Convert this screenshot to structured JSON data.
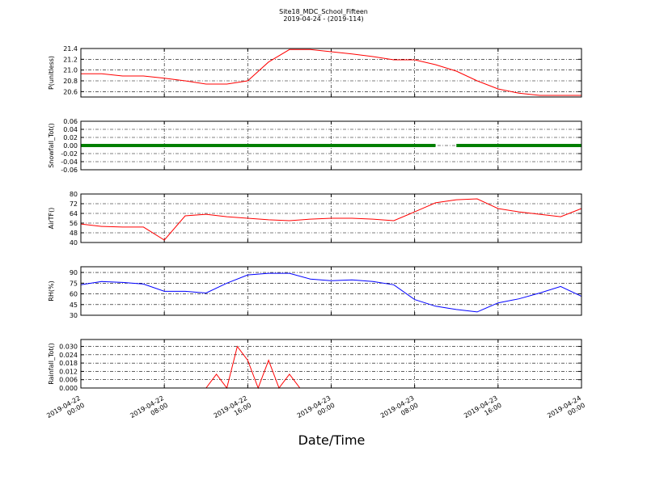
{
  "title": "Site18_MDC_School_Fifteen",
  "subtitle": "2019-04-24 - (2019-114)",
  "xlabel": "Date/Time",
  "xlim": [
    "2019-04-22 00:00",
    "2019-04-24 00:00"
  ],
  "xticks": [
    "2019-04-22 00:00",
    "2019-04-22 08:00",
    "2019-04-22 16:00",
    "2019-04-23 00:00",
    "2019-04-23 08:00",
    "2019-04-23 16:00",
    "2019-04-24 00:00"
  ],
  "grid": true,
  "chart_data": [
    {
      "type": "line",
      "ylabel": "P(unitless)",
      "color": "#ff0000",
      "ylim": [
        20.5,
        21.4
      ],
      "yticks": [
        20.6,
        20.8,
        {
          "value": 21,
          "label": "21.0"
        },
        21.2,
        21.4
      ],
      "x": [
        "2019-04-22 00:00",
        "2019-04-22 02:00",
        "2019-04-22 04:00",
        "2019-04-22 06:00",
        "2019-04-22 08:00",
        "2019-04-22 10:00",
        "2019-04-22 12:00",
        "2019-04-22 14:00",
        "2019-04-22 16:00",
        "2019-04-22 18:00",
        "2019-04-22 20:00",
        "2019-04-22 22:00",
        "2019-04-23 00:00",
        "2019-04-23 02:00",
        "2019-04-23 04:00",
        "2019-04-23 06:00",
        "2019-04-23 08:00",
        "2019-04-23 10:00",
        "2019-04-23 12:00",
        "2019-04-23 14:00",
        "2019-04-23 16:00",
        "2019-04-23 18:00",
        "2019-04-23 20:00",
        "2019-04-23 22:00",
        "2019-04-24 00:00"
      ],
      "values": [
        20.93,
        20.93,
        20.89,
        20.89,
        20.85,
        20.8,
        20.74,
        20.74,
        20.8,
        21.15,
        21.38,
        21.38,
        21.34,
        21.3,
        21.25,
        21.19,
        21.19,
        21.1,
        20.98,
        20.8,
        20.65,
        20.57,
        20.53,
        20.53,
        20.53
      ]
    },
    {
      "type": "line",
      "ylabel": "Snowfall_Tot()",
      "color": "#007f00",
      "ylim": [
        -0.06,
        0.06
      ],
      "yticks": [
        -0.06,
        -0.04,
        -0.02,
        {
          "value": 0,
          "label": "0.00"
        },
        0.02,
        0.04,
        0.06
      ],
      "x": [
        "2019-04-22 00:00",
        "2019-04-22 01:00",
        "2019-04-22 02:00",
        "2019-04-22 03:00",
        "2019-04-22 04:00",
        "2019-04-22 05:00",
        "2019-04-22 06:00",
        "2019-04-22 07:00",
        "2019-04-22 08:00",
        "2019-04-22 09:00",
        "2019-04-22 10:00",
        "2019-04-22 11:00",
        "2019-04-22 12:00",
        "2019-04-22 13:00",
        "2019-04-22 14:00",
        "2019-04-22 15:00",
        "2019-04-22 16:00",
        "2019-04-22 17:00",
        "2019-04-22 18:00",
        "2019-04-22 19:00",
        "2019-04-22 20:00",
        "2019-04-22 21:00",
        "2019-04-22 22:00",
        "2019-04-22 23:00",
        "2019-04-23 00:00",
        "2019-04-23 01:00",
        "2019-04-23 02:00",
        "2019-04-23 03:00",
        "2019-04-23 04:00",
        "2019-04-23 05:00",
        "2019-04-23 06:00",
        "2019-04-23 07:00",
        "2019-04-23 08:00",
        "2019-04-23 09:00",
        "2019-04-23 10:00",
        "2019-04-23 11:00",
        "2019-04-23 12:00",
        "2019-04-23 13:00",
        "2019-04-23 14:00",
        "2019-04-23 15:00",
        "2019-04-23 16:00",
        "2019-04-23 17:00",
        "2019-04-23 18:00",
        "2019-04-23 19:00",
        "2019-04-23 20:00",
        "2019-04-23 21:00",
        "2019-04-23 22:00",
        "2019-04-23 23:00",
        "2019-04-24 00:00"
      ],
      "values": [
        0,
        0,
        0,
        0,
        0,
        0,
        0,
        0,
        0,
        0,
        0,
        0,
        0,
        0,
        0,
        0,
        0,
        0,
        0,
        0,
        0,
        0,
        0,
        0,
        0,
        0,
        0,
        0,
        0,
        0,
        0,
        0,
        0,
        0,
        0,
        null,
        0,
        0,
        0,
        0,
        0,
        0,
        0,
        0,
        0,
        0,
        0,
        0,
        0
      ]
    },
    {
      "type": "line",
      "ylabel": "AirTF()",
      "color": "#ff0000",
      "ylim": [
        40,
        80
      ],
      "yticks": [
        40,
        48,
        56,
        64,
        72,
        80
      ],
      "x": [
        "2019-04-22 00:00",
        "2019-04-22 02:00",
        "2019-04-22 04:00",
        "2019-04-22 06:00",
        "2019-04-22 08:00",
        "2019-04-22 10:00",
        "2019-04-22 12:00",
        "2019-04-22 14:00",
        "2019-04-22 16:00",
        "2019-04-22 18:00",
        "2019-04-22 20:00",
        "2019-04-22 22:00",
        "2019-04-23 00:00",
        "2019-04-23 02:00",
        "2019-04-23 04:00",
        "2019-04-23 06:00",
        "2019-04-23 08:00",
        "2019-04-23 10:00",
        "2019-04-23 12:00",
        "2019-04-23 14:00",
        "2019-04-23 16:00",
        "2019-04-23 18:00",
        "2019-04-23 20:00",
        "2019-04-23 22:00",
        "2019-04-24 00:00"
      ],
      "values": [
        55.3,
        53.3,
        52.7,
        52.7,
        42,
        62,
        63.3,
        61.3,
        60,
        58.7,
        58,
        59.3,
        60,
        60,
        59.3,
        58,
        65.3,
        72.7,
        75.3,
        76,
        68,
        65.3,
        63.3,
        61.3,
        68
      ]
    },
    {
      "type": "line",
      "ylabel": "RH(%)",
      "color": "#0000ff",
      "ylim": [
        30,
        98
      ],
      "yticks": [
        30,
        45,
        60,
        75,
        90
      ],
      "x": [
        "2019-04-22 00:00",
        "2019-04-22 02:00",
        "2019-04-22 04:00",
        "2019-04-22 06:00",
        "2019-04-22 08:00",
        "2019-04-22 10:00",
        "2019-04-22 12:00",
        "2019-04-22 14:00",
        "2019-04-22 16:00",
        "2019-04-22 18:00",
        "2019-04-22 20:00",
        "2019-04-22 22:00",
        "2019-04-23 00:00",
        "2019-04-23 02:00",
        "2019-04-23 04:00",
        "2019-04-23 06:00",
        "2019-04-23 08:00",
        "2019-04-23 10:00",
        "2019-04-23 12:00",
        "2019-04-23 14:00",
        "2019-04-23 16:00",
        "2019-04-23 18:00",
        "2019-04-23 20:00",
        "2019-04-23 22:00",
        "2019-04-24 00:00"
      ],
      "values": [
        72.7,
        77.3,
        76,
        73.8,
        63.5,
        63.5,
        61.2,
        75,
        86.5,
        88.8,
        88.8,
        80.8,
        78.5,
        79.6,
        77.3,
        72.7,
        52,
        42.7,
        38,
        34.6,
        47.3,
        53,
        61.2,
        70.4,
        56.5
      ]
    },
    {
      "type": "line",
      "ylabel": "Rainfall_Tot()",
      "color": "#ff0000",
      "ylim": [
        0,
        0.035
      ],
      "yticks": [
        {
          "value": 0,
          "label": "0.000"
        },
        0.006,
        0.012,
        0.018,
        0.024,
        {
          "value": 0.03,
          "label": "0.030"
        }
      ],
      "x": [
        "2019-04-22 00:00",
        "2019-04-22 01:00",
        "2019-04-22 02:00",
        "2019-04-22 03:00",
        "2019-04-22 04:00",
        "2019-04-22 05:00",
        "2019-04-22 06:00",
        "2019-04-22 07:00",
        "2019-04-22 08:00",
        "2019-04-22 09:00",
        "2019-04-22 10:00",
        "2019-04-22 11:00",
        "2019-04-22 12:00",
        "2019-04-22 13:00",
        "2019-04-22 14:00",
        "2019-04-22 15:00",
        "2019-04-22 16:00",
        "2019-04-22 17:00",
        "2019-04-22 18:00",
        "2019-04-22 19:00",
        "2019-04-22 20:00",
        "2019-04-22 21:00",
        "2019-04-22 22:00",
        "2019-04-22 23:00",
        "2019-04-23 00:00",
        "2019-04-23 01:00",
        "2019-04-23 02:00",
        "2019-04-23 03:00",
        "2019-04-23 04:00",
        "2019-04-23 05:00",
        "2019-04-23 06:00",
        "2019-04-23 07:00",
        "2019-04-23 08:00",
        "2019-04-23 09:00",
        "2019-04-23 10:00",
        "2019-04-23 11:00",
        "2019-04-23 12:00",
        "2019-04-23 13:00",
        "2019-04-23 14:00",
        "2019-04-23 15:00",
        "2019-04-23 16:00",
        "2019-04-23 17:00",
        "2019-04-23 18:00",
        "2019-04-23 19:00",
        "2019-04-23 20:00",
        "2019-04-23 21:00",
        "2019-04-23 22:00",
        "2019-04-23 23:00",
        "2019-04-24 00:00"
      ],
      "values": [
        0,
        0,
        0,
        0,
        0,
        0,
        0,
        0,
        0,
        0,
        0,
        0,
        0,
        0.01,
        0,
        0.03,
        0.02,
        0,
        0.02,
        0,
        0.01,
        0,
        0,
        0,
        0,
        0,
        0,
        0,
        0,
        0,
        0,
        0,
        0,
        0,
        0,
        0,
        0,
        0,
        0,
        0,
        0,
        0,
        0,
        0,
        0,
        0,
        0,
        0,
        0
      ]
    }
  ]
}
